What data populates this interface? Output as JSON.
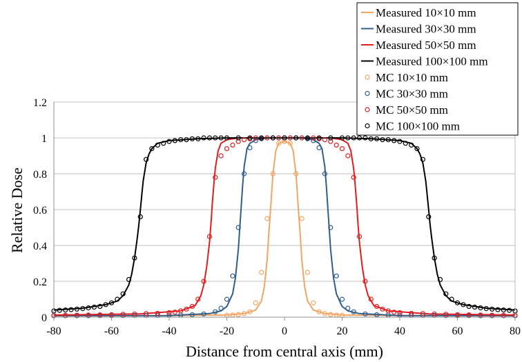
{
  "chart_data": {
    "type": "line",
    "title": "",
    "xlabel": "Distance from central axis (mm)",
    "ylabel": "Relative Dose",
    "xlim": [
      -80,
      80
    ],
    "ylim": [
      0,
      1.2
    ],
    "xticks": [
      -80,
      -60,
      -40,
      -20,
      0,
      20,
      40,
      60,
      80
    ],
    "yticks": [
      0,
      0.2,
      0.4,
      0.6,
      0.8,
      1,
      1.2
    ],
    "xtick_labels": [
      "-80",
      "-60",
      "-40",
      "-20",
      "0",
      "20",
      "40",
      "60",
      "80"
    ],
    "ytick_labels": [
      "0",
      "0.2",
      "0.4",
      "0.6",
      "0.8",
      "1",
      "1.2"
    ],
    "grid": "horizontal",
    "legend_position": "top-right",
    "series": [
      {
        "name": "Measured 10×10 mm",
        "kind": "line",
        "color": "#F4A460",
        "x": [
          -80,
          -40,
          -20,
          -14,
          -10,
          -8,
          -7,
          -6,
          -5.5,
          -5,
          -4.5,
          -4,
          -3,
          -2,
          0,
          2,
          3,
          4,
          4.5,
          5,
          5.5,
          6,
          7,
          8,
          10,
          14,
          20,
          40,
          80
        ],
        "y": [
          0.008,
          0.009,
          0.012,
          0.02,
          0.04,
          0.09,
          0.17,
          0.32,
          0.45,
          0.56,
          0.68,
          0.8,
          0.93,
          0.97,
          0.98,
          0.97,
          0.93,
          0.8,
          0.68,
          0.56,
          0.45,
          0.32,
          0.17,
          0.09,
          0.04,
          0.02,
          0.012,
          0.009,
          0.008
        ]
      },
      {
        "name": "Measured 30×30 mm",
        "kind": "line",
        "color": "#2F5C8A",
        "x": [
          -80,
          -40,
          -26,
          -22,
          -20,
          -18,
          -17,
          -16,
          -15.5,
          -15,
          -14.5,
          -14,
          -13,
          -12,
          -10,
          -6,
          0,
          6,
          10,
          12,
          13,
          14,
          14.5,
          15,
          15.5,
          16,
          17,
          18,
          20,
          22,
          26,
          40,
          80
        ],
        "y": [
          0.008,
          0.009,
          0.02,
          0.035,
          0.06,
          0.13,
          0.22,
          0.38,
          0.5,
          0.62,
          0.74,
          0.84,
          0.94,
          0.97,
          0.99,
          1.0,
          1.0,
          1.0,
          0.99,
          0.97,
          0.94,
          0.84,
          0.74,
          0.62,
          0.5,
          0.38,
          0.22,
          0.13,
          0.06,
          0.035,
          0.02,
          0.009,
          0.008
        ]
      },
      {
        "name": "Measured 50×50 mm",
        "kind": "line",
        "color": "#E41A1C",
        "x": [
          -80,
          -50,
          -36,
          -31,
          -29,
          -28,
          -27,
          -26,
          -25.5,
          -25,
          -24.5,
          -24,
          -23,
          -22,
          -20,
          -16,
          0,
          16,
          20,
          22,
          23,
          24,
          24.5,
          25,
          25.5,
          26,
          27,
          28,
          29,
          31,
          36,
          50,
          80
        ],
        "y": [
          0.012,
          0.018,
          0.035,
          0.065,
          0.12,
          0.18,
          0.28,
          0.42,
          0.52,
          0.64,
          0.74,
          0.83,
          0.93,
          0.97,
          0.99,
          1.0,
          1.0,
          1.0,
          0.99,
          0.97,
          0.93,
          0.83,
          0.74,
          0.64,
          0.52,
          0.42,
          0.28,
          0.18,
          0.12,
          0.065,
          0.035,
          0.018,
          0.012
        ]
      },
      {
        "name": "Measured 100×100 mm",
        "kind": "line",
        "color": "#000000",
        "x": [
          -80,
          -70,
          -62,
          -58,
          -56,
          -54,
          -53,
          -52,
          -51,
          -50.5,
          -50,
          -49.5,
          -49,
          -48,
          -47,
          -46,
          -44,
          -40,
          -30,
          -20,
          0,
          20,
          30,
          40,
          44,
          46,
          47,
          48,
          49,
          49.5,
          50,
          50.5,
          51,
          52,
          53,
          54,
          56,
          58,
          62,
          70,
          80
        ],
        "y": [
          0.04,
          0.05,
          0.07,
          0.09,
          0.12,
          0.18,
          0.24,
          0.33,
          0.45,
          0.52,
          0.6,
          0.68,
          0.76,
          0.86,
          0.91,
          0.94,
          0.97,
          0.985,
          0.995,
          1.0,
          1.0,
          1.0,
          0.995,
          0.985,
          0.97,
          0.94,
          0.91,
          0.86,
          0.76,
          0.68,
          0.6,
          0.52,
          0.45,
          0.33,
          0.24,
          0.18,
          0.12,
          0.09,
          0.07,
          0.05,
          0.04
        ]
      },
      {
        "name": "MC 10×10 mm",
        "kind": "markers",
        "color": "#F4A460",
        "x": [
          -20,
          -18,
          -16,
          -14,
          -12,
          -10,
          -8,
          -6,
          -4,
          -2,
          0,
          2,
          4,
          6,
          8,
          10,
          12,
          14,
          16,
          18,
          20
        ],
        "y": [
          0.01,
          0.012,
          0.015,
          0.02,
          0.03,
          0.08,
          0.25,
          0.55,
          0.8,
          0.97,
          0.98,
          0.97,
          0.8,
          0.55,
          0.25,
          0.08,
          0.03,
          0.02,
          0.015,
          0.012,
          0.01
        ]
      },
      {
        "name": "MC 30×30 mm",
        "kind": "markers",
        "color": "#2F5C8A",
        "x": [
          -80,
          -76,
          -72,
          -68,
          -64,
          -60,
          -56,
          -52,
          -48,
          -44,
          -40,
          -36,
          -32,
          -28,
          -24,
          -22,
          -20,
          -18,
          -16,
          -14,
          -12,
          -10,
          -8,
          -6,
          -4,
          -2,
          0,
          2,
          4,
          6,
          8,
          10,
          12,
          14,
          16,
          18,
          20,
          22,
          24,
          28,
          32,
          36,
          40,
          44,
          48,
          52,
          56,
          60,
          64,
          68,
          72,
          76,
          80
        ],
        "y": [
          0.008,
          0.008,
          0.008,
          0.008,
          0.009,
          0.009,
          0.009,
          0.01,
          0.01,
          0.01,
          0.011,
          0.012,
          0.014,
          0.018,
          0.03,
          0.05,
          0.1,
          0.23,
          0.5,
          0.8,
          0.945,
          0.985,
          0.995,
          1.0,
          1.0,
          1.0,
          1.0,
          1.0,
          1.0,
          1.0,
          0.995,
          0.985,
          0.945,
          0.8,
          0.5,
          0.23,
          0.1,
          0.05,
          0.03,
          0.018,
          0.014,
          0.012,
          0.011,
          0.01,
          0.01,
          0.01,
          0.009,
          0.009,
          0.009,
          0.008,
          0.008,
          0.008,
          0.008
        ]
      },
      {
        "name": "MC 50×50 mm",
        "kind": "markers",
        "color": "#E41A1C",
        "x": [
          -80,
          -76,
          -72,
          -68,
          -64,
          -60,
          -56,
          -52,
          -48,
          -44,
          -40,
          -38,
          -36,
          -34,
          -32,
          -30,
          -28,
          -26,
          -24,
          -22,
          -20,
          -18,
          -16,
          -14,
          -12,
          -10,
          -8,
          -6,
          -4,
          -2,
          0,
          2,
          4,
          6,
          8,
          10,
          12,
          14,
          16,
          18,
          20,
          22,
          24,
          26,
          28,
          30,
          32,
          34,
          36,
          38,
          40,
          44,
          48,
          52,
          56,
          60,
          64,
          68,
          72,
          76,
          80
        ],
        "y": [
          0.01,
          0.01,
          0.011,
          0.012,
          0.013,
          0.014,
          0.016,
          0.018,
          0.02,
          0.022,
          0.025,
          0.028,
          0.035,
          0.045,
          0.06,
          0.1,
          0.2,
          0.45,
          0.78,
          0.9,
          0.94,
          0.96,
          0.98,
          0.99,
          0.995,
          1.0,
          1.0,
          1.0,
          1.0,
          1.0,
          1.0,
          1.0,
          1.0,
          1.0,
          1.0,
          1.0,
          0.995,
          0.99,
          0.98,
          0.96,
          0.94,
          0.9,
          0.78,
          0.45,
          0.2,
          0.1,
          0.06,
          0.045,
          0.035,
          0.028,
          0.025,
          0.022,
          0.02,
          0.018,
          0.016,
          0.014,
          0.013,
          0.012,
          0.011,
          0.01,
          0.01
        ]
      },
      {
        "name": "MC 100×100 mm",
        "kind": "markers",
        "color": "#000000",
        "x": [
          -80,
          -78,
          -76,
          -74,
          -72,
          -70,
          -68,
          -66,
          -64,
          -62,
          -60,
          -58,
          -56,
          -54,
          -52,
          -50,
          -48,
          -46,
          -44,
          -42,
          -40,
          -38,
          -36,
          -34,
          -32,
          -30,
          -28,
          -26,
          -24,
          -22,
          -20,
          -16,
          -12,
          -8,
          -4,
          0,
          4,
          8,
          12,
          16,
          20,
          22,
          24,
          26,
          28,
          30,
          32,
          34,
          36,
          38,
          40,
          42,
          44,
          46,
          48,
          50,
          52,
          54,
          56,
          58,
          60,
          62,
          64,
          66,
          68,
          70,
          72,
          74,
          76,
          78,
          80
        ],
        "y": [
          0.035,
          0.038,
          0.04,
          0.042,
          0.045,
          0.048,
          0.052,
          0.056,
          0.06,
          0.07,
          0.08,
          0.1,
          0.13,
          0.21,
          0.33,
          0.56,
          0.88,
          0.94,
          0.96,
          0.97,
          0.98,
          0.985,
          0.99,
          0.99,
          0.995,
          0.995,
          1.0,
          1.0,
          1.0,
          1.0,
          1.0,
          1.0,
          1.0,
          1.0,
          1.0,
          1.0,
          1.0,
          1.0,
          1.0,
          1.0,
          1.0,
          1.0,
          1.0,
          1.0,
          1.0,
          0.995,
          0.995,
          0.99,
          0.99,
          0.985,
          0.98,
          0.97,
          0.96,
          0.94,
          0.88,
          0.56,
          0.33,
          0.21,
          0.13,
          0.1,
          0.08,
          0.07,
          0.06,
          0.056,
          0.052,
          0.048,
          0.045,
          0.042,
          0.04,
          0.038,
          0.035
        ]
      }
    ]
  }
}
